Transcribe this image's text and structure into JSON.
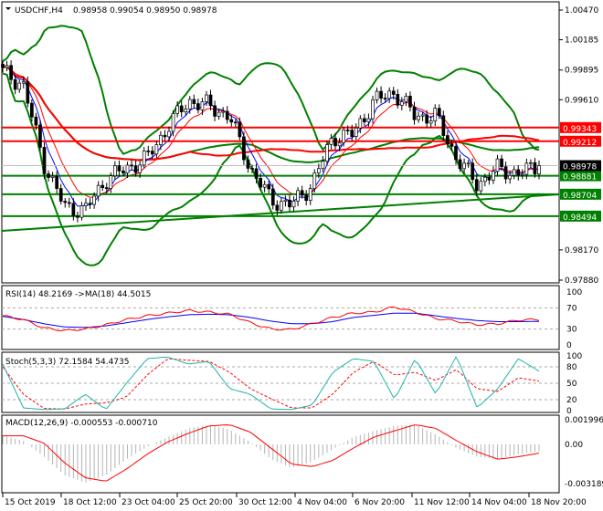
{
  "header": {
    "symbol": "USDCHF,H4",
    "ohlc": "0.98958 0.99054 0.98950 0.98978"
  },
  "colors": {
    "bull": "#0a7a0a",
    "bear": "#ff0000",
    "resistance": "#ff0000",
    "support": "#008000",
    "current": "#000000",
    "rsi": "#ff0000",
    "rsi_ma": "#0000ff",
    "stoch_k": "#20b2aa",
    "stoch_d": "#ff0000",
    "macd_hist": "#b4b4b4",
    "macd_signal": "#ff0000"
  },
  "chart_data": [
    {
      "type": "candlestick",
      "title": "USDCHF,H4",
      "close_keypoints": [
        0.9988,
        0.9975,
        0.99,
        0.9858,
        0.9855,
        0.9885,
        0.9895,
        0.9905,
        0.9935,
        0.996,
        0.9955,
        0.9945,
        0.9895,
        0.9865,
        0.986,
        0.988,
        0.9925,
        0.9928,
        0.996,
        0.9968,
        0.9945,
        0.9945,
        0.9905,
        0.988,
        0.9895,
        0.989,
        0.98978
      ],
      "ylim": [
        0.9788,
        1.0047
      ],
      "y_ticks": [
        "1.00470",
        "1.00185",
        "0.99895",
        "0.99610",
        "0.98170",
        "0.97880"
      ],
      "levels": [
        {
          "label": "0.99343",
          "value": 0.99343,
          "kind": "resistance"
        },
        {
          "label": "0.99212",
          "value": 0.99212,
          "kind": "resistance"
        },
        {
          "label": "0.98881",
          "value": 0.98881,
          "kind": "support"
        },
        {
          "label": "0.98704",
          "value": 0.98704,
          "kind": "support"
        },
        {
          "label": "0.98494",
          "value": 0.98494,
          "kind": "support"
        }
      ],
      "trendline": [
        0.98353,
        0.98703
      ],
      "current_price": {
        "label": "0.98978",
        "value": 0.98978
      },
      "x_tick_labels": [
        "15 Oct 2019",
        "18 Oct 12:00",
        "23 Oct 04:00",
        "25 Oct 20:00",
        "30 Oct 12:00",
        "4 Nov 04:00",
        "6 Nov 20:00",
        "11 Nov 12:00",
        "14 Nov 04:00",
        "18 Nov 20:00"
      ]
    },
    {
      "type": "line",
      "title": "RSI(14) 48.2169  ->MA(18) 44.5015",
      "ylim": [
        0,
        100
      ],
      "y_ticks": [
        "100",
        "70",
        "30",
        "0"
      ],
      "series": [
        {
          "name": "RSI(14)",
          "values": [
            55,
            48,
            32,
            27,
            30,
            38,
            48,
            55,
            60,
            65,
            62,
            58,
            42,
            30,
            29,
            40,
            52,
            60,
            62,
            72,
            62,
            50,
            45,
            38,
            40,
            47,
            48
          ]
        },
        {
          "name": "MA(18)",
          "values": [
            54,
            48,
            40,
            34,
            33,
            36,
            42,
            48,
            53,
            57,
            58,
            57,
            52,
            45,
            40,
            40,
            44,
            52,
            56,
            60,
            60,
            55,
            50,
            46,
            44,
            44,
            44.5
          ]
        }
      ]
    },
    {
      "type": "line",
      "title": "Stoch(5,3,3) 72.1584 54.4735",
      "ylim": [
        0,
        100
      ],
      "y_ticks": [
        "100",
        "80",
        "50",
        "20",
        "0"
      ],
      "series": [
        {
          "values": [
            85,
            5,
            2,
            3,
            30,
            2,
            50,
            95,
            98,
            85,
            90,
            40,
            30,
            3,
            2,
            10,
            70,
            95,
            90,
            20,
            95,
            30,
            100,
            5,
            40,
            95,
            72
          ]
        },
        {
          "values": [
            80,
            30,
            4,
            3,
            12,
            14,
            25,
            65,
            95,
            92,
            90,
            70,
            40,
            22,
            5,
            5,
            30,
            70,
            90,
            65,
            70,
            55,
            75,
            40,
            35,
            60,
            54
          ]
        }
      ]
    },
    {
      "type": "bar",
      "title": "MACD(12,26,9) -0.000553 -0.000710",
      "ylim": [
        -0.003189,
        0.001996
      ],
      "y_ticks": [
        "0.001996",
        "0.00",
        "-0.003189"
      ],
      "series": [
        {
          "values": [
            0.0007,
            0.0003,
            -0.001,
            -0.0025,
            -0.0031,
            -0.0025,
            -0.0012,
            -0.0002,
            0.0006,
            0.0013,
            0.0016,
            0.0012,
            0.0002,
            -0.0012,
            -0.0019,
            -0.0014,
            -0.0004,
            0.0006,
            0.0011,
            0.0015,
            0.0016,
            0.0008,
            -0.0003,
            -0.001,
            -0.0012,
            -0.0008,
            -0.000553
          ]
        },
        {
          "values": [
            0.0007,
            0.0007,
            0.0001,
            -0.0015,
            -0.0027,
            -0.003,
            -0.002,
            -0.0008,
            0.0002,
            0.0009,
            0.0015,
            0.0016,
            0.001,
            -0.0003,
            -0.0016,
            -0.0018,
            -0.0013,
            -0.0003,
            0.0006,
            0.0011,
            0.0016,
            0.0013,
            0.0003,
            -0.0006,
            -0.0012,
            -0.001,
            -0.00071
          ]
        }
      ]
    }
  ]
}
